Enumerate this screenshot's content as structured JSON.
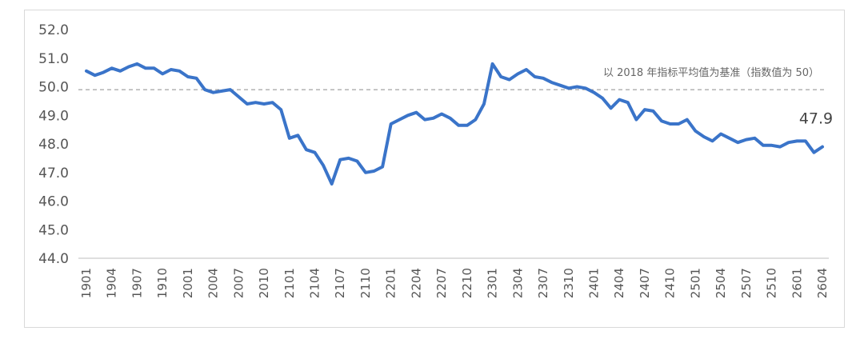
{
  "chart_data": {
    "type": "line",
    "title": "",
    "xlabel": "",
    "ylabel": "",
    "ylim": [
      44,
      52
    ],
    "yticks": [
      "44.0",
      "45.0",
      "46.0",
      "47.0",
      "48.0",
      "49.0",
      "50.0",
      "51.0",
      "52.0"
    ],
    "grid": false,
    "x_tick_labels": [
      "1901",
      "1904",
      "1907",
      "1910",
      "2001",
      "2004",
      "2007",
      "2010",
      "2101",
      "2104",
      "2107",
      "2110",
      "2201",
      "2204",
      "2207",
      "2210",
      "2301",
      "2304",
      "2307",
      "2310",
      "2401",
      "2404",
      "2407",
      "2410",
      "2501",
      "2504",
      "2507",
      "2510",
      "2601",
      "2604"
    ],
    "reference_line": {
      "value": 49.9,
      "style": "dashed",
      "label": "以 2018 年指标平均值为基准（指数值为 50）"
    },
    "last_value_label": "47.9",
    "series": [
      {
        "color": "#3a74c9",
        "x": [
          "1901",
          "1902",
          "1903",
          "1904",
          "1905",
          "1906",
          "1907",
          "1908",
          "1909",
          "1910",
          "1911",
          "1912",
          "2001",
          "2002",
          "2003",
          "2004",
          "2005",
          "2006",
          "2007",
          "2008",
          "2009",
          "2010",
          "2011",
          "2012",
          "2101",
          "2102",
          "2103",
          "2104",
          "2105",
          "2106",
          "2107",
          "2108",
          "2109",
          "2110",
          "2111",
          "2112",
          "2201",
          "2202",
          "2203",
          "2204",
          "2205",
          "2206",
          "2207",
          "2208",
          "2209",
          "2210",
          "2211",
          "2212",
          "2301",
          "2302",
          "2303",
          "2304",
          "2305",
          "2306",
          "2307",
          "2308",
          "2309",
          "2310",
          "2311",
          "2312",
          "2401",
          "2402",
          "2403",
          "2404",
          "2405",
          "2406",
          "2407",
          "2408",
          "2409",
          "2410",
          "2411",
          "2412",
          "2501",
          "2502",
          "2503",
          "2504",
          "2505",
          "2506",
          "2507",
          "2508",
          "2509",
          "2510",
          "2511",
          "2512",
          "2601",
          "2602",
          "2603",
          "2604"
        ],
        "values": [
          50.55,
          50.4,
          50.5,
          50.65,
          50.55,
          50.7,
          50.8,
          50.65,
          50.65,
          50.45,
          50.6,
          50.55,
          50.35,
          50.3,
          49.9,
          49.8,
          49.85,
          49.9,
          49.65,
          49.4,
          49.45,
          49.4,
          49.45,
          49.2,
          48.2,
          48.3,
          47.8,
          47.7,
          47.25,
          46.6,
          47.45,
          47.5,
          47.4,
          47.0,
          47.05,
          47.2,
          48.7,
          48.85,
          49.0,
          49.1,
          48.85,
          48.9,
          49.05,
          48.9,
          48.65,
          48.65,
          48.85,
          49.4,
          50.8,
          50.35,
          50.25,
          50.45,
          50.6,
          50.35,
          50.3,
          50.15,
          50.05,
          49.95,
          50.0,
          49.95,
          49.8,
          49.6,
          49.25,
          49.55,
          49.45,
          48.85,
          49.2,
          49.15,
          48.8,
          48.7,
          48.7,
          48.85,
          48.45,
          48.25,
          48.1,
          48.35,
          48.2,
          48.05,
          48.15,
          48.2,
          47.95,
          47.95,
          47.9,
          48.05,
          48.1,
          48.1,
          47.7,
          47.9
        ]
      }
    ]
  }
}
